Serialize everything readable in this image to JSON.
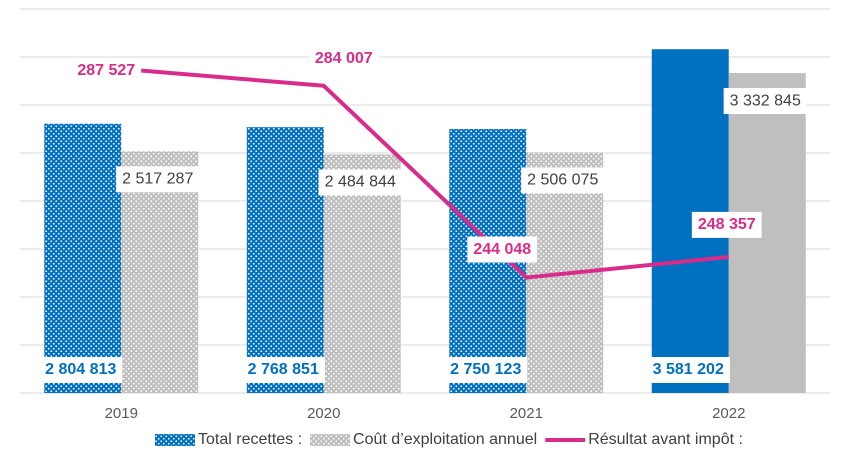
{
  "chart_data": {
    "type": "bar",
    "categories": [
      "2019",
      "2020",
      "2021",
      "2022"
    ],
    "ylim": [
      0,
      4000000
    ],
    "yticks": [
      0,
      500000,
      1000000,
      1500000,
      2000000,
      2500000,
      3000000,
      3500000,
      4000000
    ],
    "y2lim": [
      220000,
      300000
    ],
    "grid": true,
    "legend": "bottom",
    "series": [
      {
        "name": "Total recettes :",
        "color": "#0070c0",
        "fill_styles": [
          "pattern",
          "pattern",
          "pattern",
          "solid"
        ],
        "values": [
          2804813,
          2768851,
          2750123,
          3581202
        ],
        "value_labels": [
          "2 804 813",
          "2 768 851",
          "2 750 123",
          "3 581 202"
        ]
      },
      {
        "name": "Coût d’exploitation annuel",
        "color": "#bfbfbf",
        "fill_styles": [
          "pattern",
          "pattern",
          "pattern",
          "solid"
        ],
        "values": [
          2517287,
          2484844,
          2506075,
          3332845
        ],
        "value_labels": [
          "2 517 287",
          "2 484 844",
          "2 506 075",
          "3 332 845"
        ]
      },
      {
        "name": "Résultat avant impôt :",
        "color": "#d92c8a",
        "type": "line",
        "axis": "y2",
        "values": [
          287527,
          284007,
          244048,
          248357
        ],
        "value_labels": [
          "287 527",
          "284 007",
          "244 048",
          "248 357"
        ]
      }
    ]
  }
}
